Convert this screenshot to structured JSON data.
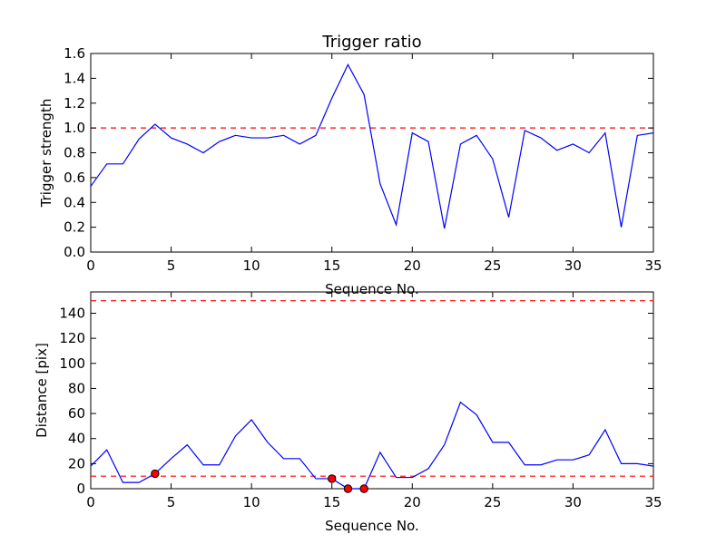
{
  "chart_data": [
    {
      "type": "line",
      "title": "Trigger ratio",
      "xlabel": "Sequence No.",
      "ylabel": "Trigger strength",
      "xlim": [
        0,
        35
      ],
      "ylim": [
        0,
        1.6
      ],
      "xticks": [
        0,
        5,
        10,
        15,
        20,
        25,
        30,
        35
      ],
      "yticks": [
        0.0,
        0.2,
        0.4,
        0.6,
        0.8,
        1.0,
        1.2,
        1.4,
        1.6
      ],
      "ytick_labels": [
        "0.0",
        "0.2",
        "0.4",
        "0.6",
        "0.8",
        "1.0",
        "1.2",
        "1.4",
        "1.6"
      ],
      "grid": false,
      "line_color": "#0000ff",
      "x": [
        0,
        1,
        2,
        3,
        4,
        5,
        6,
        7,
        8,
        9,
        10,
        11,
        12,
        13,
        14,
        15,
        16,
        17,
        18,
        19,
        20,
        21,
        22,
        23,
        24,
        25,
        26,
        27,
        28,
        29,
        30,
        31,
        32,
        33,
        34,
        35
      ],
      "series": [
        {
          "values": [
            0.53,
            0.71,
            0.71,
            0.91,
            1.03,
            0.92,
            0.87,
            0.8,
            0.89,
            0.94,
            0.92,
            0.92,
            0.94,
            0.87,
            0.94,
            1.24,
            1.51,
            1.27,
            0.55,
            0.22,
            0.96,
            0.89,
            0.19,
            0.87,
            0.94,
            0.75,
            0.28,
            0.98,
            0.92,
            0.82,
            0.87,
            0.8,
            0.96,
            0.2,
            0.94,
            0.96
          ]
        }
      ],
      "threshold_lines": [
        1.0
      ],
      "threshold_color": "#ff0000"
    },
    {
      "type": "line",
      "title": "",
      "xlabel": "Sequence No.",
      "ylabel": "Distance [pix]",
      "xlim": [
        0,
        35
      ],
      "ylim": [
        0,
        157
      ],
      "xticks": [
        0,
        5,
        10,
        15,
        20,
        25,
        30,
        35
      ],
      "yticks": [
        0,
        20,
        40,
        60,
        80,
        100,
        120,
        140
      ],
      "ytick_labels": [
        "0",
        "20",
        "40",
        "60",
        "80",
        "100",
        "120",
        "140"
      ],
      "grid": false,
      "line_color": "#0000ff",
      "x": [
        0,
        1,
        2,
        3,
        4,
        5,
        6,
        7,
        8,
        9,
        10,
        11,
        12,
        13,
        14,
        15,
        16,
        17,
        18,
        19,
        20,
        21,
        22,
        23,
        24,
        25,
        26,
        27,
        28,
        29,
        30,
        31,
        32,
        33,
        34,
        35
      ],
      "series": [
        {
          "values": [
            18,
            31,
            5,
            5,
            12,
            24,
            35,
            19,
            19,
            42,
            55,
            37,
            24,
            24,
            8,
            8,
            0,
            0,
            29,
            9,
            9,
            16,
            35,
            69,
            59,
            37,
            37,
            19,
            19,
            23,
            23,
            27,
            47,
            20,
            20,
            18
          ]
        }
      ],
      "markers": [
        {
          "x": 4,
          "y": 12
        },
        {
          "x": 15,
          "y": 8
        },
        {
          "x": 16,
          "y": 0
        },
        {
          "x": 17,
          "y": 0
        }
      ],
      "marker_color": "#ff0000",
      "threshold_lines": [
        10,
        150
      ],
      "threshold_color": "#ff0000"
    }
  ]
}
